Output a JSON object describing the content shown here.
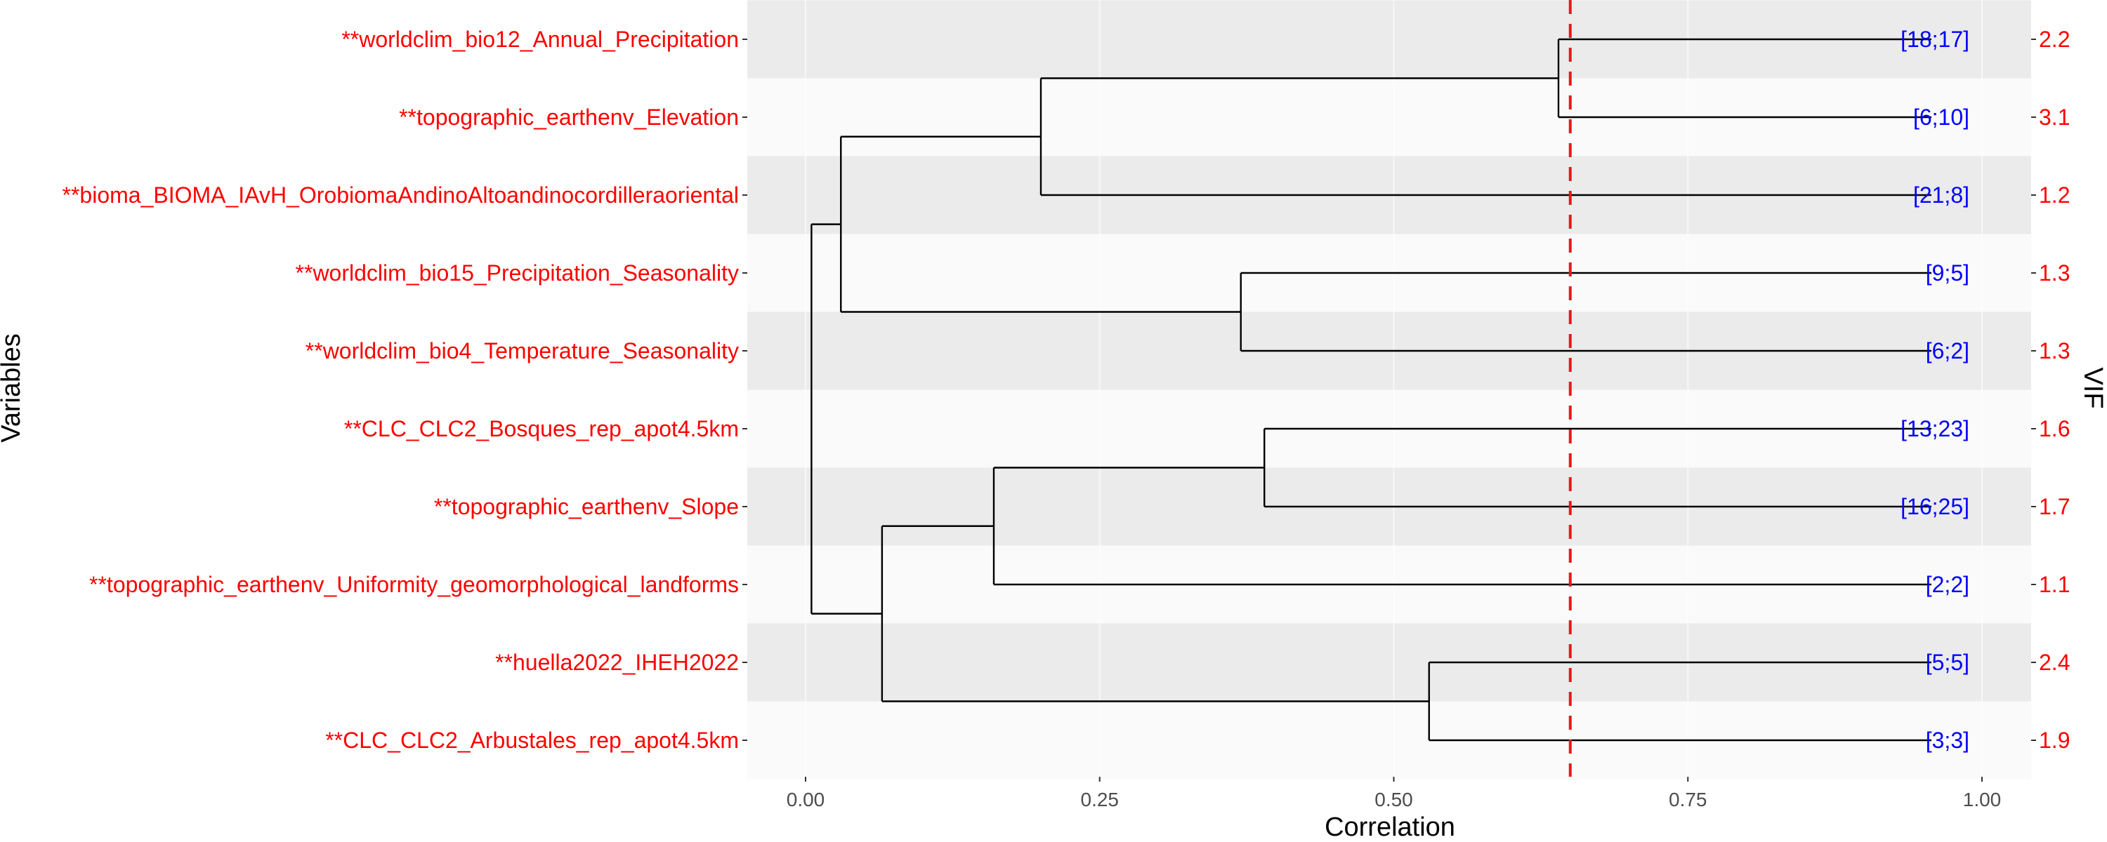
{
  "chart_data": {
    "type": "dendrogram",
    "xlabel": "Correlation",
    "ylabel": "Variables",
    "y2label": "VIF",
    "xlim": [
      -0.1,
      1.04
    ],
    "xticks": [
      0.0,
      0.25,
      0.5,
      0.75,
      1.0
    ],
    "xtick_labels": [
      "0.00",
      "0.25",
      "0.50",
      "0.75",
      "1.00"
    ],
    "threshold": 0.65,
    "threshold_color": "#e41a1c",
    "label_color": "#ff0000",
    "count_color": "#0000ff",
    "band_color_dark": "#ebebeb",
    "band_color_light": "#fafafa",
    "leaves": [
      {
        "variable": "**worldclim_bio12_Annual_Precipitation",
        "counts": "[18;17]",
        "vif": "2.2"
      },
      {
        "variable": "**topographic_earthenv_Elevation",
        "counts": "[6;10]",
        "vif": "3.1"
      },
      {
        "variable": "**bioma_BIOMA_IAvH_OrobiomaAndinoAltoandinocordilleraoriental",
        "counts": "[21;8]",
        "vif": "1.2"
      },
      {
        "variable": "**worldclim_bio15_Precipitation_Seasonality",
        "counts": "[9;5]",
        "vif": "1.3"
      },
      {
        "variable": "**worldclim_bio4_Temperature_Seasonality",
        "counts": "[6;2]",
        "vif": "1.3"
      },
      {
        "variable": "**CLC_CLC2_Bosques_rep_apot4.5km",
        "counts": "[13;23]",
        "vif": "1.6"
      },
      {
        "variable": "**topographic_earthenv_Slope",
        "counts": "[16;25]",
        "vif": "1.7"
      },
      {
        "variable": "**topographic_earthenv_Uniformity_geomorphological_landforms",
        "counts": "[2;2]",
        "vif": "1.1"
      },
      {
        "variable": "**huella2022_IHEH2022",
        "counts": "[5;5]",
        "vif": "2.4"
      },
      {
        "variable": "**CLC_CLC2_Arbustales_rep_apot4.5km",
        "counts": "[3;3]",
        "vif": "1.9"
      }
    ],
    "merges": [
      {
        "id": "A",
        "left": 0,
        "right": 1,
        "height": 0.64
      },
      {
        "id": "B",
        "left": "A",
        "right": 2,
        "height": 0.2
      },
      {
        "id": "C",
        "left": 3,
        "right": 4,
        "height": 0.37
      },
      {
        "id": "D",
        "left": "B",
        "right": "C",
        "height": 0.03
      },
      {
        "id": "E",
        "left": 5,
        "right": 6,
        "height": 0.39
      },
      {
        "id": "F",
        "left": "E",
        "right": 7,
        "height": 0.16
      },
      {
        "id": "G",
        "left": 8,
        "right": 9,
        "height": 0.53
      },
      {
        "id": "H",
        "left": "F",
        "right": "G",
        "height": 0.065
      },
      {
        "id": "I",
        "left": "D",
        "right": "H",
        "height": 0.005
      }
    ]
  }
}
